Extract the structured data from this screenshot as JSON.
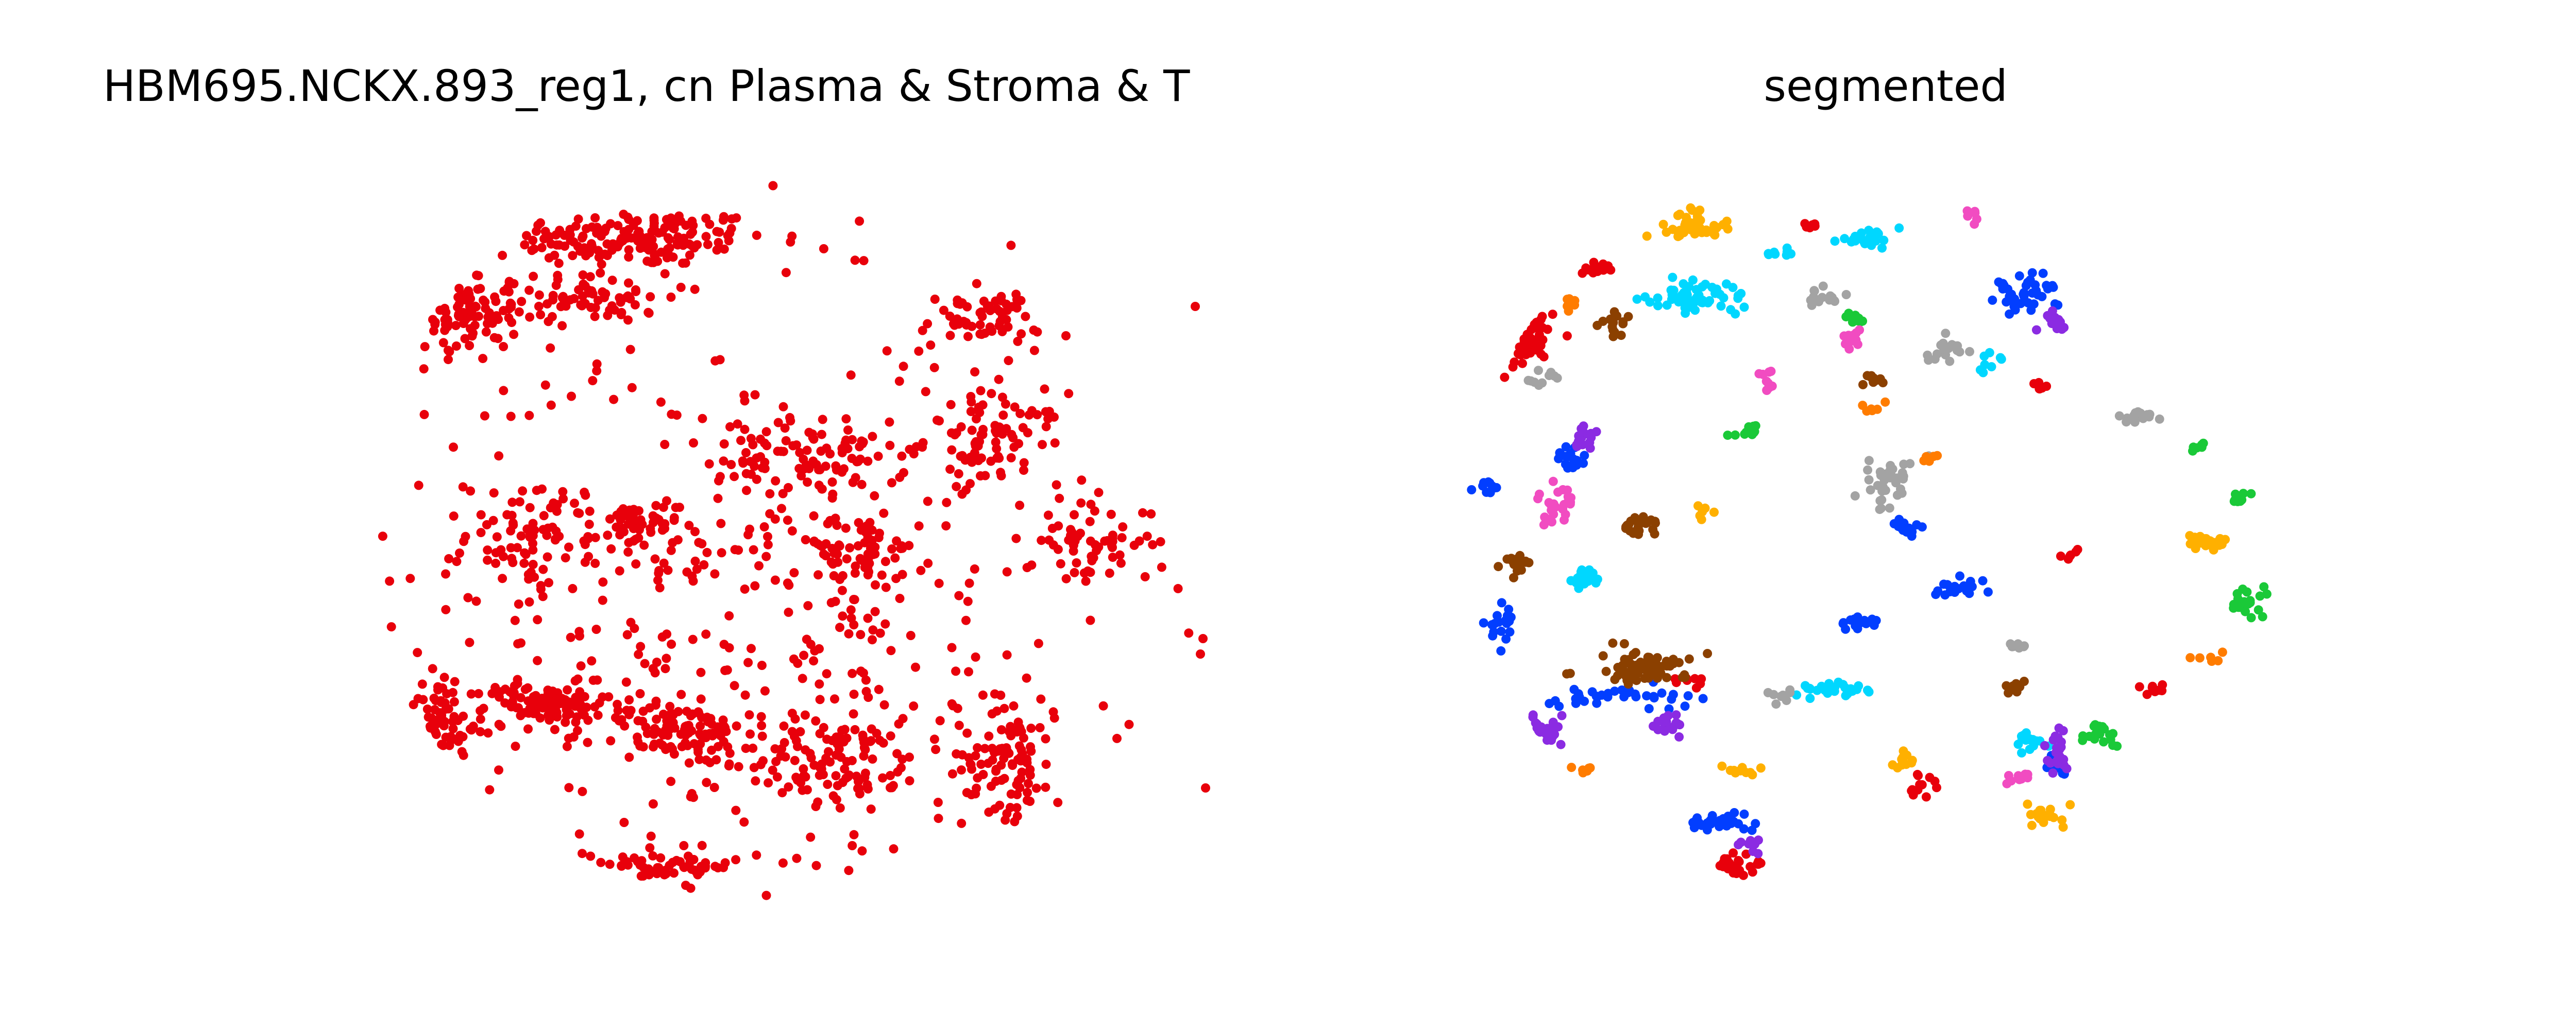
{
  "chart_data": [
    {
      "type": "scatter",
      "title": "HBM695.NCKX.893_reg1, cn Plasma & Stroma & T",
      "axes_visible": false,
      "grid": false,
      "legend": "none",
      "point_color": "#e8000b",
      "series": [
        {
          "color": "#e8000b",
          "clusters": [
            {
              "x": 1.9,
              "y": 8.9,
              "rx": 0.9,
              "ry": 0.35,
              "n": 160
            },
            {
              "x": 0.7,
              "y": 7.9,
              "rx": 0.35,
              "ry": 0.6,
              "n": 90
            },
            {
              "x": 1.6,
              "y": 8.1,
              "rx": 0.5,
              "ry": 0.3,
              "n": 70
            },
            {
              "x": 4.4,
              "y": 7.8,
              "rx": 0.4,
              "ry": 0.35,
              "n": 60
            },
            {
              "x": 4.5,
              "y": 6.2,
              "rx": 0.45,
              "ry": 0.55,
              "n": 80
            },
            {
              "x": 3.2,
              "y": 5.9,
              "rx": 0.6,
              "ry": 0.5,
              "n": 90
            },
            {
              "x": 1.2,
              "y": 4.9,
              "rx": 0.45,
              "ry": 0.7,
              "n": 80
            },
            {
              "x": 1.9,
              "y": 5.0,
              "rx": 0.3,
              "ry": 0.3,
              "n": 45
            },
            {
              "x": 3.5,
              "y": 4.7,
              "rx": 0.5,
              "ry": 0.4,
              "n": 60
            },
            {
              "x": 1.3,
              "y": 2.6,
              "rx": 0.4,
              "ry": 0.25,
              "n": 90
            },
            {
              "x": 0.5,
              "y": 2.3,
              "rx": 0.25,
              "ry": 0.6,
              "n": 60
            },
            {
              "x": 2.2,
              "y": 2.2,
              "rx": 0.5,
              "ry": 0.4,
              "n": 90
            },
            {
              "x": 3.4,
              "y": 1.8,
              "rx": 0.55,
              "ry": 0.5,
              "n": 90
            },
            {
              "x": 4.6,
              "y": 1.9,
              "rx": 0.3,
              "ry": 0.7,
              "n": 90
            },
            {
              "x": 2.1,
              "y": 0.4,
              "rx": 0.5,
              "ry": 0.2,
              "n": 60
            },
            {
              "x": 5.2,
              "y": 4.8,
              "rx": 0.4,
              "ry": 0.5,
              "n": 60
            },
            {
              "x": 2.8,
              "y": 3.6,
              "rx": 2.2,
              "ry": 3.8,
              "n": 420
            }
          ]
        }
      ]
    },
    {
      "type": "scatter",
      "title": "segmented",
      "axes_visible": false,
      "grid": false,
      "legend": "none",
      "palette": {
        "red": "#e8000b",
        "blue": "#023eff",
        "orange": "#ffb000",
        "green": "#1ac938",
        "brown": "#8b4000",
        "purple": "#8b2be2",
        "pink": "#f14cc1",
        "gray": "#a3a3a3",
        "cyan": "#00d7ff",
        "darkorange": "#ff7c00"
      },
      "clusters": [
        {
          "c": "red",
          "x": 0.3,
          "y": 7.8,
          "rx": 0.18,
          "ry": 0.5,
          "n": 70
        },
        {
          "c": "red",
          "x": 0.85,
          "y": 8.5,
          "rx": 0.2,
          "ry": 0.08,
          "n": 15
        },
        {
          "c": "red",
          "x": 1.9,
          "y": 0.4,
          "rx": 0.15,
          "ry": 0.15,
          "n": 25
        },
        {
          "c": "red",
          "x": 1.6,
          "y": 2.9,
          "rx": 0.1,
          "ry": 0.1,
          "n": 8
        },
        {
          "c": "red",
          "x": 3.2,
          "y": 1.5,
          "rx": 0.1,
          "ry": 0.15,
          "n": 12
        },
        {
          "c": "red",
          "x": 4.1,
          "y": 6.9,
          "rx": 0.08,
          "ry": 0.08,
          "n": 6
        },
        {
          "c": "red",
          "x": 4.9,
          "y": 2.8,
          "rx": 0.1,
          "ry": 0.08,
          "n": 8
        },
        {
          "c": "red",
          "x": 2.4,
          "y": 9.1,
          "rx": 0.1,
          "ry": 0.08,
          "n": 8
        },
        {
          "c": "red",
          "x": 4.3,
          "y": 4.6,
          "rx": 0.08,
          "ry": 0.08,
          "n": 6
        },
        {
          "c": "green",
          "x": 1.1,
          "y": 9.4,
          "rx": 0.1,
          "ry": 0.25,
          "n": 30
        },
        {
          "c": "green",
          "x": 5.5,
          "y": 5.4,
          "rx": 0.1,
          "ry": 0.1,
          "n": 10
        },
        {
          "c": "green",
          "x": 5.6,
          "y": 4.0,
          "rx": 0.15,
          "ry": 0.15,
          "n": 20
        },
        {
          "c": "green",
          "x": 4.5,
          "y": 2.2,
          "rx": 0.15,
          "ry": 0.15,
          "n": 18
        },
        {
          "c": "green",
          "x": 2.0,
          "y": 6.3,
          "rx": 0.12,
          "ry": 0.1,
          "n": 12
        },
        {
          "c": "green",
          "x": 2.7,
          "y": 7.8,
          "rx": 0.08,
          "ry": 0.12,
          "n": 10
        },
        {
          "c": "green",
          "x": 5.2,
          "y": 6.1,
          "rx": 0.08,
          "ry": 0.08,
          "n": 6
        },
        {
          "c": "orange",
          "x": 1.6,
          "y": 9.1,
          "rx": 0.25,
          "ry": 0.2,
          "n": 45
        },
        {
          "c": "orange",
          "x": 5.3,
          "y": 4.8,
          "rx": 0.2,
          "ry": 0.1,
          "n": 25
        },
        {
          "c": "orange",
          "x": 1.9,
          "y": 1.7,
          "rx": 0.15,
          "ry": 0.1,
          "n": 15
        },
        {
          "c": "orange",
          "x": 4.1,
          "y": 1.1,
          "rx": 0.15,
          "ry": 0.12,
          "n": 18
        },
        {
          "c": "orange",
          "x": 3.1,
          "y": 1.9,
          "rx": 0.1,
          "ry": 0.2,
          "n": 10
        },
        {
          "c": "orange",
          "x": 1.7,
          "y": 5.2,
          "rx": 0.08,
          "ry": 0.08,
          "n": 6
        },
        {
          "c": "blue",
          "x": 4.0,
          "y": 8.2,
          "rx": 0.25,
          "ry": 0.25,
          "n": 40
        },
        {
          "c": "blue",
          "x": 1.0,
          "y": 2.7,
          "rx": 0.5,
          "ry": 0.12,
          "n": 35
        },
        {
          "c": "blue",
          "x": 1.8,
          "y": 1.0,
          "rx": 0.2,
          "ry": 0.1,
          "n": 35
        },
        {
          "c": "blue",
          "x": 0.7,
          "y": 5.9,
          "rx": 0.1,
          "ry": 0.15,
          "n": 20
        },
        {
          "c": "blue",
          "x": 0.2,
          "y": 3.7,
          "rx": 0.1,
          "ry": 0.3,
          "n": 20
        },
        {
          "c": "blue",
          "x": 2.8,
          "y": 3.7,
          "rx": 0.15,
          "ry": 0.12,
          "n": 20
        },
        {
          "c": "blue",
          "x": 3.5,
          "y": 4.2,
          "rx": 0.15,
          "ry": 0.15,
          "n": 20
        },
        {
          "c": "blue",
          "x": 3.1,
          "y": 5.0,
          "rx": 0.1,
          "ry": 0.12,
          "n": 12
        },
        {
          "c": "blue",
          "x": 0.1,
          "y": 5.5,
          "rx": 0.08,
          "ry": 0.12,
          "n": 10
        },
        {
          "c": "blue",
          "x": 4.2,
          "y": 1.8,
          "rx": 0.08,
          "ry": 0.15,
          "n": 10
        },
        {
          "c": "cyan",
          "x": 1.6,
          "y": 8.1,
          "rx": 0.35,
          "ry": 0.2,
          "n": 60
        },
        {
          "c": "cyan",
          "x": 2.8,
          "y": 8.9,
          "rx": 0.2,
          "ry": 0.12,
          "n": 25
        },
        {
          "c": "cyan",
          "x": 2.6,
          "y": 2.8,
          "rx": 0.25,
          "ry": 0.08,
          "n": 25
        },
        {
          "c": "cyan",
          "x": 0.8,
          "y": 4.3,
          "rx": 0.15,
          "ry": 0.15,
          "n": 20
        },
        {
          "c": "cyan",
          "x": 4.0,
          "y": 2.1,
          "rx": 0.12,
          "ry": 0.1,
          "n": 15
        },
        {
          "c": "cyan",
          "x": 2.2,
          "y": 8.7,
          "rx": 0.1,
          "ry": 0.08,
          "n": 8
        },
        {
          "c": "cyan",
          "x": 3.7,
          "y": 7.2,
          "rx": 0.08,
          "ry": 0.12,
          "n": 8
        },
        {
          "c": "brown",
          "x": 1.2,
          "y": 3.1,
          "rx": 0.35,
          "ry": 0.2,
          "n": 70
        },
        {
          "c": "brown",
          "x": 1.2,
          "y": 5.0,
          "rx": 0.15,
          "ry": 0.15,
          "n": 25
        },
        {
          "c": "brown",
          "x": 1.0,
          "y": 7.8,
          "rx": 0.08,
          "ry": 0.2,
          "n": 15
        },
        {
          "c": "brown",
          "x": 0.3,
          "y": 4.5,
          "rx": 0.12,
          "ry": 0.15,
          "n": 15
        },
        {
          "c": "brown",
          "x": 2.9,
          "y": 7.0,
          "rx": 0.12,
          "ry": 0.1,
          "n": 10
        },
        {
          "c": "brown",
          "x": 3.9,
          "y": 2.8,
          "rx": 0.1,
          "ry": 0.12,
          "n": 10
        },
        {
          "c": "purple",
          "x": 0.4,
          "y": 2.2,
          "rx": 0.2,
          "ry": 0.25,
          "n": 30
        },
        {
          "c": "purple",
          "x": 1.4,
          "y": 2.3,
          "rx": 0.12,
          "ry": 0.15,
          "n": 20
        },
        {
          "c": "purple",
          "x": 4.2,
          "y": 2.0,
          "rx": 0.1,
          "ry": 0.3,
          "n": 20
        },
        {
          "c": "purple",
          "x": 4.2,
          "y": 7.8,
          "rx": 0.12,
          "ry": 0.15,
          "n": 15
        },
        {
          "c": "purple",
          "x": 0.8,
          "y": 6.2,
          "rx": 0.12,
          "ry": 0.15,
          "n": 15
        },
        {
          "c": "purple",
          "x": 0.9,
          "y": 1.0,
          "rx": 0.1,
          "ry": 0.1,
          "n": 12
        },
        {
          "c": "purple",
          "x": 2.0,
          "y": 0.7,
          "rx": 0.08,
          "ry": 0.1,
          "n": 8
        },
        {
          "c": "pink",
          "x": 0.6,
          "y": 5.3,
          "rx": 0.12,
          "ry": 0.2,
          "n": 25
        },
        {
          "c": "pink",
          "x": 2.7,
          "y": 7.5,
          "rx": 0.08,
          "ry": 0.15,
          "n": 12
        },
        {
          "c": "pink",
          "x": 2.1,
          "y": 7.0,
          "rx": 0.08,
          "ry": 0.12,
          "n": 10
        },
        {
          "c": "pink",
          "x": 3.9,
          "y": 1.6,
          "rx": 0.12,
          "ry": 0.08,
          "n": 10
        },
        {
          "c": "pink",
          "x": 3.6,
          "y": 9.2,
          "rx": 0.06,
          "ry": 0.12,
          "n": 6
        },
        {
          "c": "gray",
          "x": 3.0,
          "y": 5.6,
          "rx": 0.15,
          "ry": 0.35,
          "n": 35
        },
        {
          "c": "gray",
          "x": 2.5,
          "y": 8.1,
          "rx": 0.15,
          "ry": 0.12,
          "n": 15
        },
        {
          "c": "gray",
          "x": 3.4,
          "y": 7.4,
          "rx": 0.15,
          "ry": 0.2,
          "n": 18
        },
        {
          "c": "gray",
          "x": 4.8,
          "y": 6.5,
          "rx": 0.15,
          "ry": 0.08,
          "n": 15
        },
        {
          "c": "gray",
          "x": 0.5,
          "y": 7.0,
          "rx": 0.1,
          "ry": 0.1,
          "n": 10
        },
        {
          "c": "gray",
          "x": 2.2,
          "y": 2.7,
          "rx": 0.12,
          "ry": 0.08,
          "n": 10
        },
        {
          "c": "gray",
          "x": 3.9,
          "y": 3.4,
          "rx": 0.1,
          "ry": 0.06,
          "n": 8
        },
        {
          "c": "darkorange",
          "x": 0.7,
          "y": 8.0,
          "rx": 0.08,
          "ry": 0.08,
          "n": 6
        },
        {
          "c": "darkorange",
          "x": 1.3,
          "y": 0.3,
          "rx": 0.12,
          "ry": 0.08,
          "n": 10
        },
        {
          "c": "darkorange",
          "x": 0.8,
          "y": 1.7,
          "rx": 0.08,
          "ry": 0.08,
          "n": 6
        },
        {
          "c": "darkorange",
          "x": 5.3,
          "y": 3.2,
          "rx": 0.08,
          "ry": 0.1,
          "n": 6
        },
        {
          "c": "darkorange",
          "x": 3.3,
          "y": 5.9,
          "rx": 0.1,
          "ry": 0.08,
          "n": 6
        },
        {
          "c": "darkorange",
          "x": 2.9,
          "y": 6.6,
          "rx": 0.08,
          "ry": 0.08,
          "n": 6
        }
      ]
    }
  ]
}
